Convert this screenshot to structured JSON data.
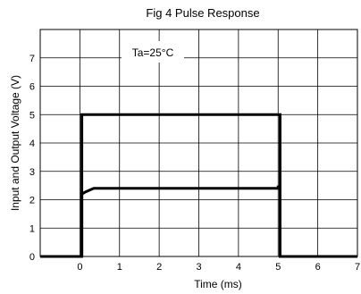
{
  "chart_data": {
    "type": "line",
    "title": "Fig 4 Pulse Response",
    "xlabel": "Time (ms)",
    "ylabel": "Input and Output Voltage (V)",
    "annotation": "Ta=25°C",
    "xlim": [
      -1,
      7
    ],
    "ylim": [
      0,
      8
    ],
    "x_ticks": [
      0,
      1,
      2,
      3,
      4,
      5,
      6,
      7
    ],
    "y_ticks": [
      0,
      1,
      2,
      3,
      4,
      5,
      6,
      7
    ],
    "grid": true,
    "series": [
      {
        "points": [
          [
            -1,
            0
          ],
          [
            0.05,
            0
          ],
          [
            0.05,
            5
          ],
          [
            5.05,
            5
          ],
          [
            5.05,
            0
          ],
          [
            7,
            0
          ]
        ]
      },
      {
        "points": [
          [
            0.05,
            0
          ],
          [
            0.05,
            2.2
          ],
          [
            0.15,
            2.28
          ],
          [
            0.35,
            2.4
          ],
          [
            5.0,
            2.4
          ],
          [
            5.0,
            2.5
          ]
        ]
      }
    ]
  }
}
